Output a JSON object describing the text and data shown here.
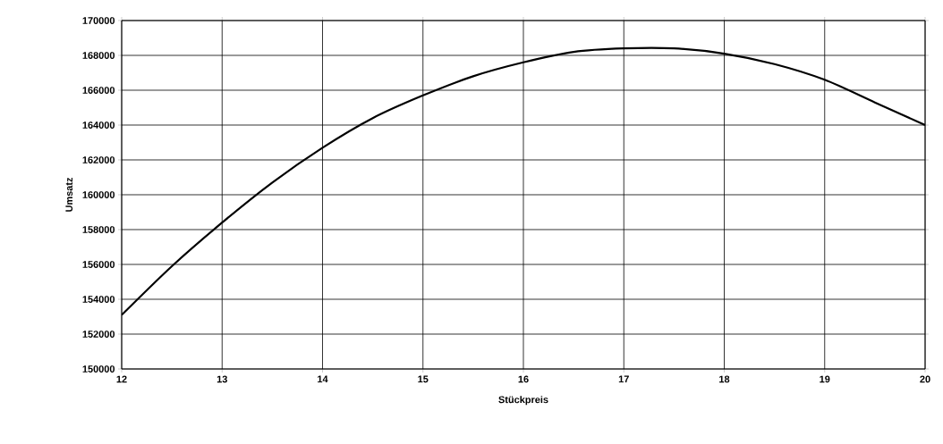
{
  "chart_data": {
    "type": "line",
    "xlabel": "Stückpreis",
    "ylabel": "Umsatz",
    "x": [
      12,
      12.5,
      13,
      13.5,
      14,
      14.5,
      15,
      15.5,
      16,
      16.5,
      17,
      17.5,
      18,
      18.5,
      19,
      19.5,
      20
    ],
    "series": [
      {
        "color": "#000000",
        "values": [
          153100,
          155900,
          158400,
          160700,
          162700,
          164400,
          165700,
          166800,
          167600,
          168200,
          168400,
          168400,
          168100,
          167500,
          166600,
          165300,
          164000
        ]
      }
    ],
    "xlim": [
      12,
      20
    ],
    "ylim": [
      150000,
      170000
    ],
    "xticks": [
      12,
      13,
      14,
      15,
      16,
      17,
      18,
      19,
      20
    ],
    "yticks": [
      150000,
      152000,
      154000,
      156000,
      158000,
      160000,
      162000,
      164000,
      166000,
      168000,
      170000
    ],
    "grid": true,
    "marker": "none",
    "line_style": "solid"
  }
}
